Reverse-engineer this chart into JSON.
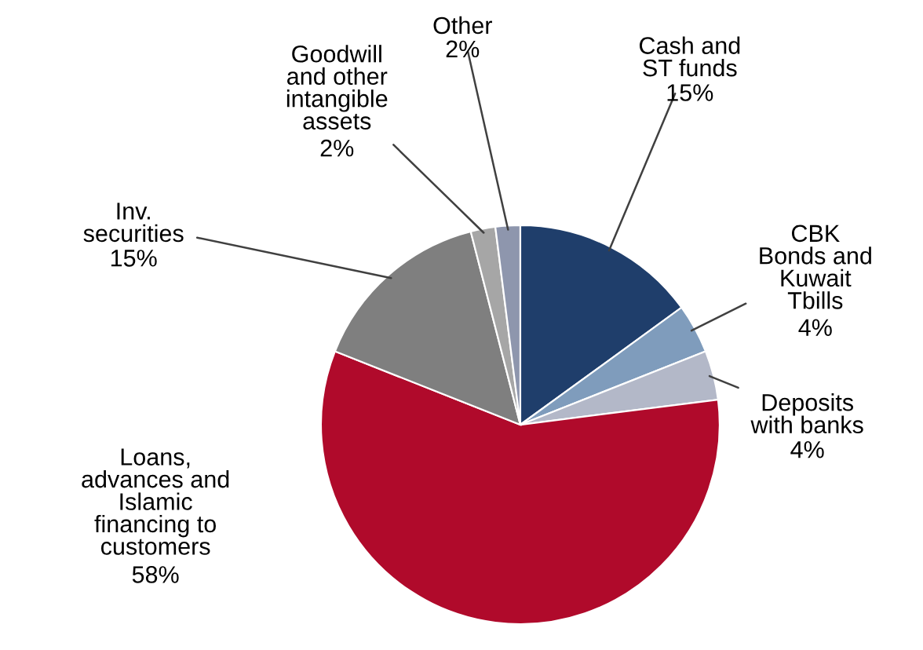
{
  "chart_data": {
    "type": "pie",
    "categories": [
      "Cash and\nST funds",
      "CBK\nBonds and\nKuwait\nTbills",
      "Deposits\nwith banks",
      "Loans,\nadvances and\nIslamic\nfinancing to\ncustomers",
      "Inv.\nsecurities",
      "Goodwill\nand other\nintangible\nassets",
      "Other"
    ],
    "values": [
      15,
      4,
      4,
      58,
      15,
      2,
      2
    ],
    "colors": [
      "#1f3e6b",
      "#7f9cbc",
      "#b3b8c8",
      "#b00a2b",
      "#7f7f7f",
      "#a6a6a6",
      "#8e96ad"
    ],
    "value_labels": [
      "15%",
      "4%",
      "4%",
      "58%",
      "15%",
      "2%",
      "2%"
    ],
    "legend": false
  }
}
